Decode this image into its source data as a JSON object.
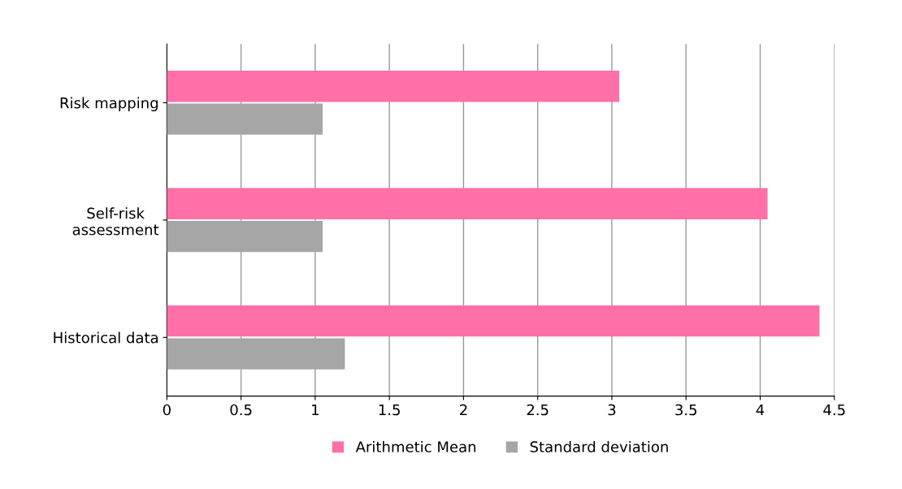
{
  "chart_data": {
    "type": "bar",
    "orientation": "horizontal",
    "categories": [
      "Risk mapping",
      "Self-risk\nassessment",
      "Historical data"
    ],
    "series": [
      {
        "name": "Arithmetic Mean",
        "color": "#ff6fa8",
        "values": [
          3.05,
          4.05,
          4.4
        ]
      },
      {
        "name": "Standard deviation",
        "color": "#a6a6a6",
        "values": [
          1.05,
          1.05,
          1.2
        ]
      }
    ],
    "xlim": [
      0,
      4.5
    ],
    "xticks": [
      0,
      0.5,
      1,
      1.5,
      2,
      2.5,
      3,
      3.5,
      4,
      4.5
    ],
    "grid": "x",
    "legend": "bottom"
  }
}
